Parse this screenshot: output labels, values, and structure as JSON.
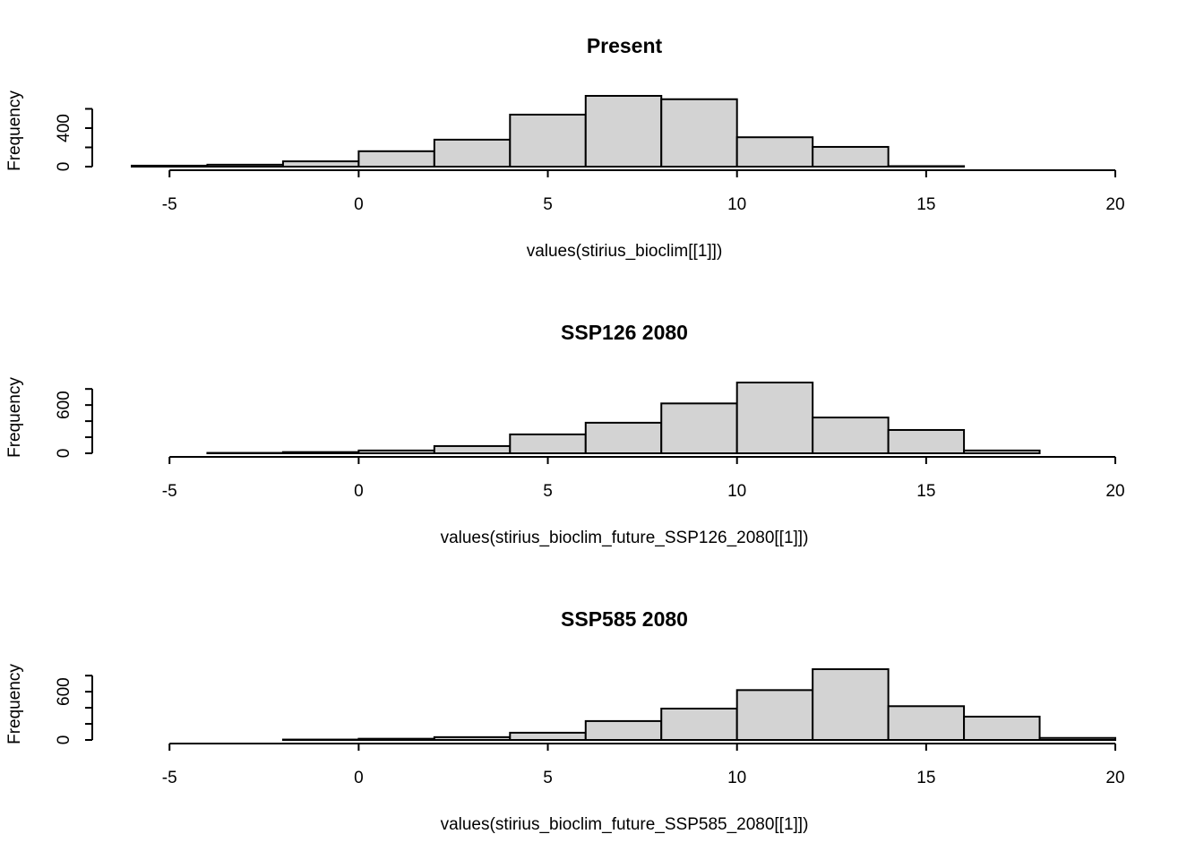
{
  "chart_data": [
    {
      "type": "histogram",
      "title": "Present",
      "xlabel": "values(stirius_bioclim[[1]])",
      "ylabel": "Frequency",
      "bins": [
        -6,
        -4,
        -2,
        0,
        2,
        4,
        6,
        8,
        10,
        12,
        14,
        16
      ],
      "values": [
        10,
        20,
        55,
        160,
        280,
        540,
        735,
        700,
        305,
        205,
        5
      ],
      "color": "#d3d3d3",
      "xlim": [
        -6,
        20
      ],
      "xticks": [
        -5,
        0,
        5,
        10,
        15,
        20
      ],
      "ylim": [
        0,
        735
      ],
      "yticks": [
        0,
        400
      ],
      "yminorticks": [
        200,
        600
      ]
    },
    {
      "type": "histogram",
      "title": "SSP126 2080",
      "xlabel": "values(stirius_bioclim_future_SSP126_2080[[1]])",
      "ylabel": "Frequency",
      "bins": [
        -4,
        -2,
        0,
        2,
        4,
        6,
        8,
        10,
        12,
        14,
        16,
        18
      ],
      "values": [
        5,
        15,
        35,
        90,
        235,
        380,
        620,
        880,
        445,
        290,
        35
      ],
      "color": "#d3d3d3",
      "xlim": [
        -6,
        20
      ],
      "xticks": [
        -5,
        0,
        5,
        10,
        15,
        20
      ],
      "ylim": [
        0,
        880
      ],
      "yticks": [
        0,
        600
      ],
      "yminorticks": [
        200,
        400,
        800
      ]
    },
    {
      "type": "histogram",
      "title": "SSP585 2080",
      "xlabel": "values(stirius_bioclim_future_SSP585_2080[[1]])",
      "ylabel": "Frequency",
      "bins": [
        -2,
        0,
        2,
        4,
        6,
        8,
        10,
        12,
        14,
        16,
        18,
        20
      ],
      "values": [
        5,
        15,
        35,
        90,
        235,
        390,
        620,
        880,
        420,
        290,
        25
      ],
      "color": "#d3d3d3",
      "xlim": [
        -6,
        20
      ],
      "xticks": [
        -5,
        0,
        5,
        10,
        15,
        20
      ],
      "ylim": [
        0,
        880
      ],
      "yticks": [
        0,
        600
      ],
      "yminorticks": [
        200,
        400,
        800
      ]
    }
  ]
}
